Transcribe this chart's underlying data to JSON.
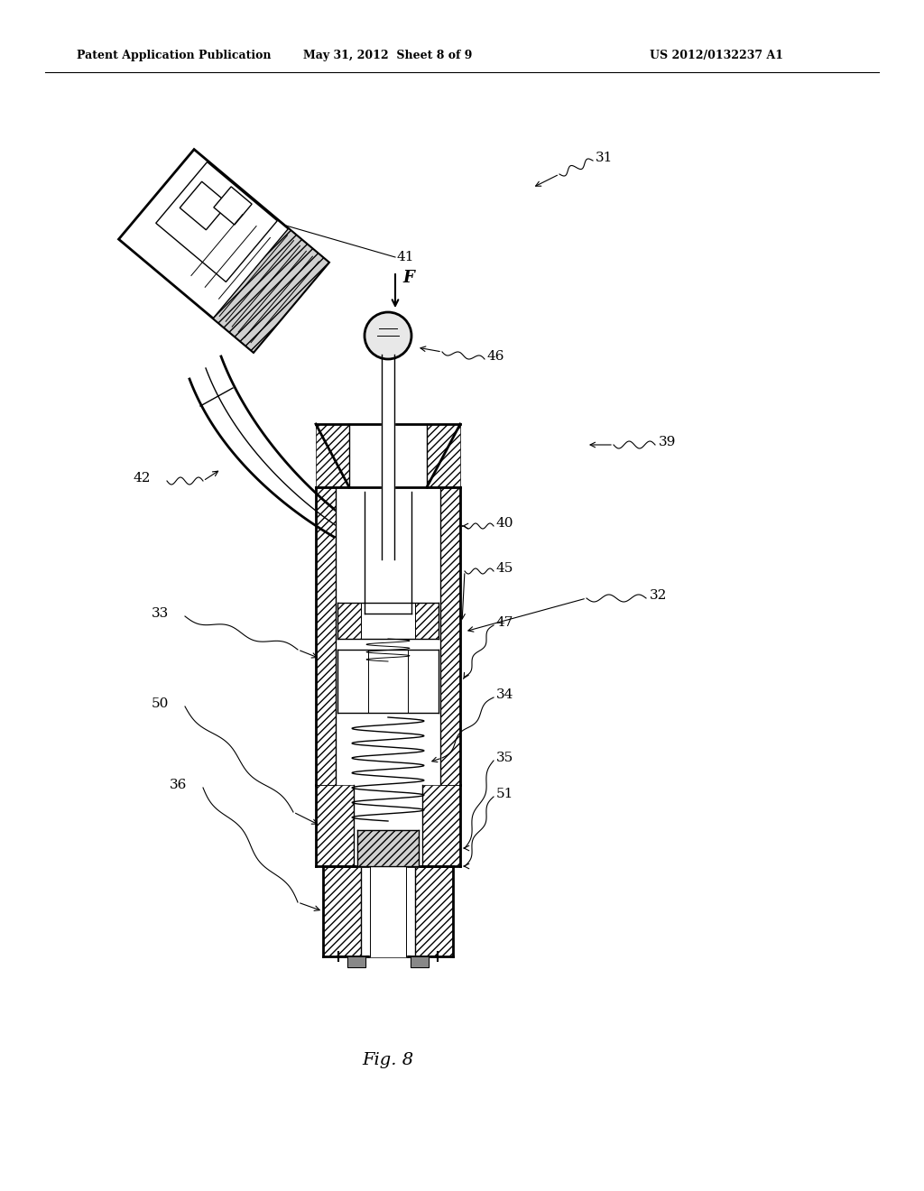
{
  "title": "Fig. 8",
  "header_left": "Patent Application Publication",
  "header_center": "May 31, 2012  Sheet 8 of 9",
  "header_right": "US 2012/0132237 A1",
  "background_color": "#ffffff",
  "line_color": "#000000",
  "fig_width": 10.24,
  "fig_height": 13.2,
  "dpi": 100
}
